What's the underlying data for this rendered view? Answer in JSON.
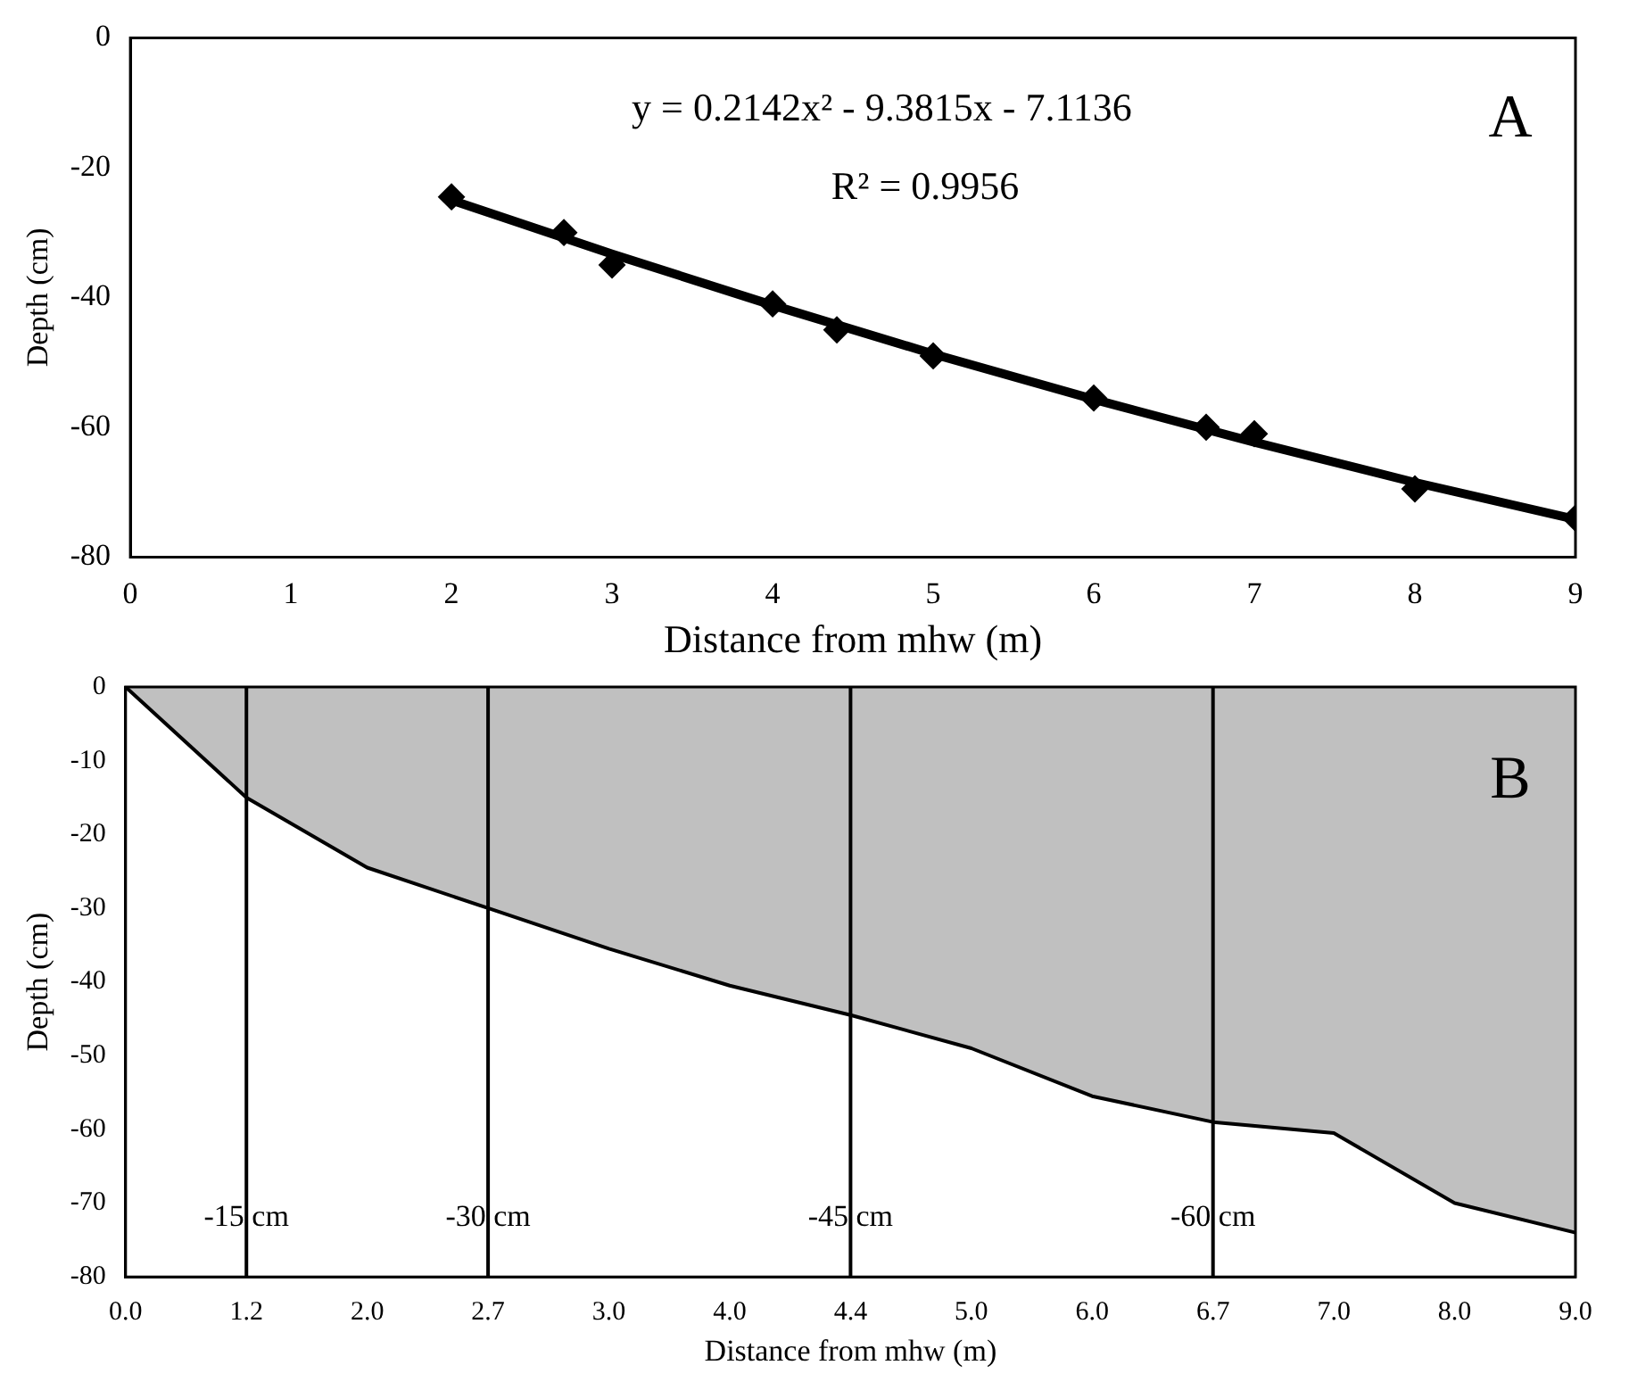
{
  "chart_data": [
    {
      "type": "scatter",
      "xlabel": "Distance from mhw (m)",
      "ylabel": "Depth (cm)",
      "xlim": [
        0,
        9
      ],
      "xticks": [
        0,
        1,
        2,
        3,
        4,
        5,
        6,
        7,
        8,
        9
      ],
      "ylim": [
        -80,
        0
      ],
      "yticks": [
        -80,
        -60,
        -40,
        -20,
        0
      ],
      "grid": false,
      "legend": false,
      "annotations": [
        "y = 0.2142x² - 9.3815x - 7.1136",
        "R² = 0.9956",
        "A"
      ],
      "series": [
        {
          "type": "scatter",
          "marker": "diamond",
          "color": "#000000",
          "x": [
            2,
            2.7,
            3,
            4,
            4.4,
            5,
            6,
            6.7,
            7,
            8,
            9
          ],
          "values": [
            -24.5,
            -30,
            -35,
            -41,
            -45,
            -49,
            -55.5,
            -60,
            -61,
            -69.5,
            -74
          ]
        },
        {
          "type": "line",
          "marker": "none",
          "color": "#000000",
          "x": [
            2,
            3,
            4,
            5,
            6,
            7,
            8,
            9
          ],
          "values": [
            -25,
            -33.3,
            -41.2,
            -48.7,
            -55.7,
            -62.3,
            -68.5,
            -74.2
          ]
        }
      ]
    },
    {
      "type": "area",
      "xlabel": "Distance from mhw (m)",
      "ylabel": "Depth (cm)",
      "categories": [
        "0.0",
        "1.2",
        "2.0",
        "2.7",
        "3.0",
        "4.0",
        "4.4",
        "5.0",
        "6.0",
        "6.7",
        "7.0",
        "8.0",
        "9.0"
      ],
      "ylim": [
        -80,
        0
      ],
      "yticks": [
        -80,
        -70,
        -60,
        -50,
        -40,
        -30,
        -20,
        -10,
        0
      ],
      "grid": false,
      "legend": false,
      "annotations": [
        "B"
      ],
      "series": [
        {
          "color": "#c0c0c0",
          "values": [
            0,
            -15,
            -24.5,
            -30,
            -35.5,
            -40.5,
            -44.5,
            -49,
            -55.5,
            -59,
            -60.5,
            -70,
            -74
          ]
        }
      ],
      "ref_lines": [
        {
          "axis": "x",
          "value": "1.2",
          "label": "-15 cm"
        },
        {
          "axis": "x",
          "value": "2.7",
          "label": "-30 cm"
        },
        {
          "axis": "x",
          "value": "4.4",
          "label": "-45 cm"
        },
        {
          "axis": "x",
          "value": "6.7",
          "label": "-60 cm"
        }
      ]
    }
  ]
}
